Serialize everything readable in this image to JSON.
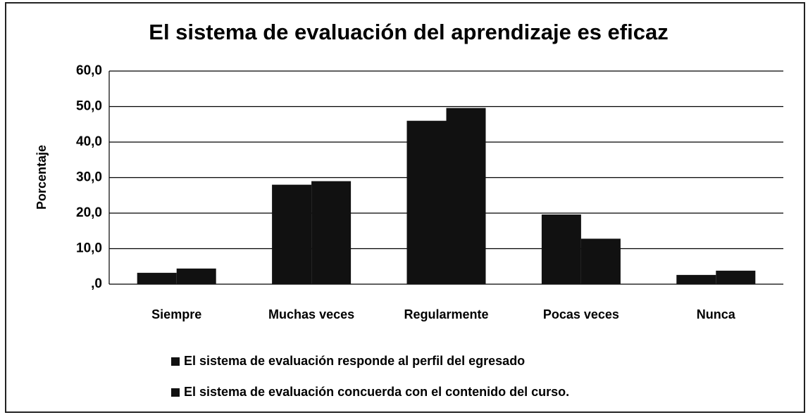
{
  "chart_data": {
    "type": "bar",
    "title": "El sistema de evaluación del aprendizaje es eficaz",
    "y_label": "Porcentaje",
    "categories": [
      "Siempre",
      "Muchas veces",
      "Regularmente",
      "Pocas veces",
      "Nunca"
    ],
    "series": [
      {
        "name": "El sistema de evaluación responde al perfil del egresado",
        "color": "#111111",
        "values": [
          3.2,
          28.0,
          46.0,
          19.6,
          2.6
        ]
      },
      {
        "name": "El sistema de evaluación concuerda con el contenido del curso.",
        "color": "#111111",
        "values": [
          4.4,
          29.0,
          49.6,
          12.8,
          3.8
        ]
      }
    ],
    "ylim": [
      0,
      60
    ],
    "yticks": [
      {
        "value": 0,
        "label": ",0"
      },
      {
        "value": 10,
        "label": "10,0"
      },
      {
        "value": 20,
        "label": "20,0"
      },
      {
        "value": 30,
        "label": "30,0"
      },
      {
        "value": 40,
        "label": "40,0"
      },
      {
        "value": 50,
        "label": "50,0"
      },
      {
        "value": 60,
        "label": "60,0"
      }
    ],
    "grid": true,
    "legend": "bottom"
  }
}
